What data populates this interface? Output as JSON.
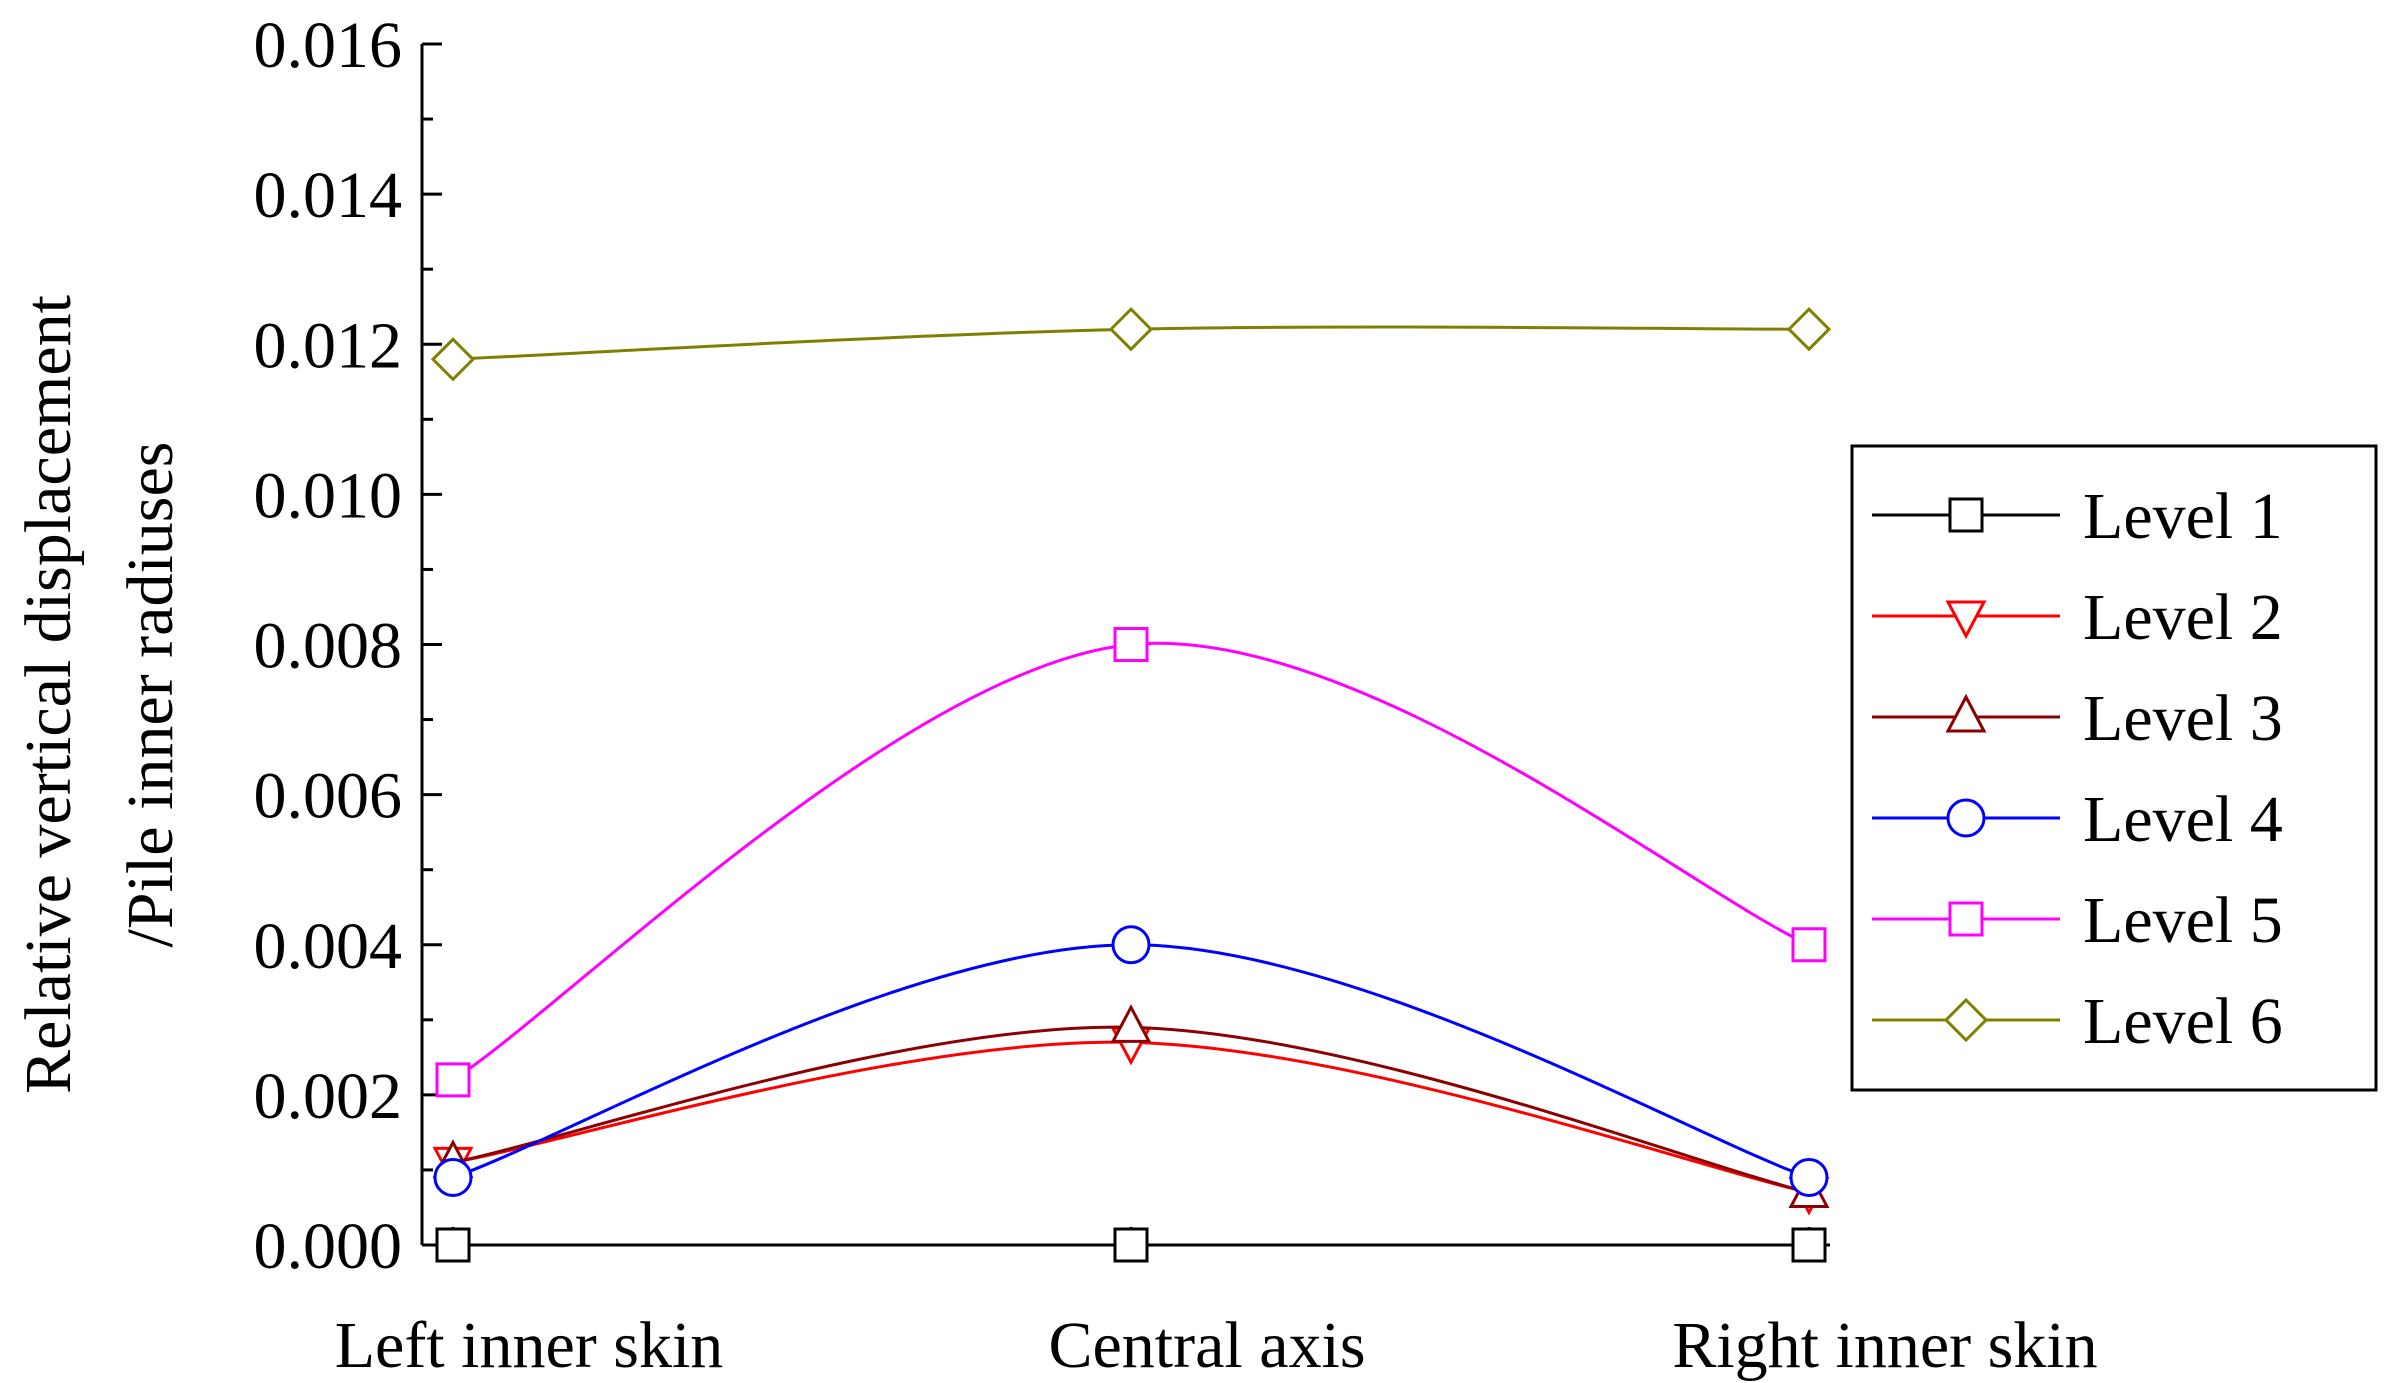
{
  "chart_data": {
    "type": "line",
    "title": "",
    "ylabel_lines": [
      "Relative vertical displacement",
      "/Pile inner radiuses"
    ],
    "xlabel": "",
    "categories": [
      "Left inner skin",
      "Central axis",
      "Right inner skin"
    ],
    "ylim": [
      0,
      0.016
    ],
    "yticks": [
      "0.000",
      "0.002",
      "0.004",
      "0.006",
      "0.008",
      "0.010",
      "0.012",
      "0.014",
      "0.016"
    ],
    "grid": false,
    "legend_position": "right",
    "series": [
      {
        "name": "Level 1",
        "values": [
          0.0,
          0.0,
          0.0
        ],
        "color": "#000000",
        "marker": "square"
      },
      {
        "name": "Level 2",
        "values": [
          0.0011,
          0.0027,
          0.0007
        ],
        "color": "#ff0000",
        "marker": "triangle-down"
      },
      {
        "name": "Level 3",
        "values": [
          0.0011,
          0.0029,
          0.0007
        ],
        "color": "#8b0000",
        "marker": "triangle-up"
      },
      {
        "name": "Level 4",
        "values": [
          0.0009,
          0.004,
          0.0009
        ],
        "color": "#0000ff",
        "marker": "circle"
      },
      {
        "name": "Level 5",
        "values": [
          0.0022,
          0.008,
          0.004
        ],
        "color": "#ff00ff",
        "marker": "square"
      },
      {
        "name": "Level 6",
        "values": [
          0.0118,
          0.0122,
          0.0122
        ],
        "color": "#808000",
        "marker": "diamond"
      }
    ]
  }
}
